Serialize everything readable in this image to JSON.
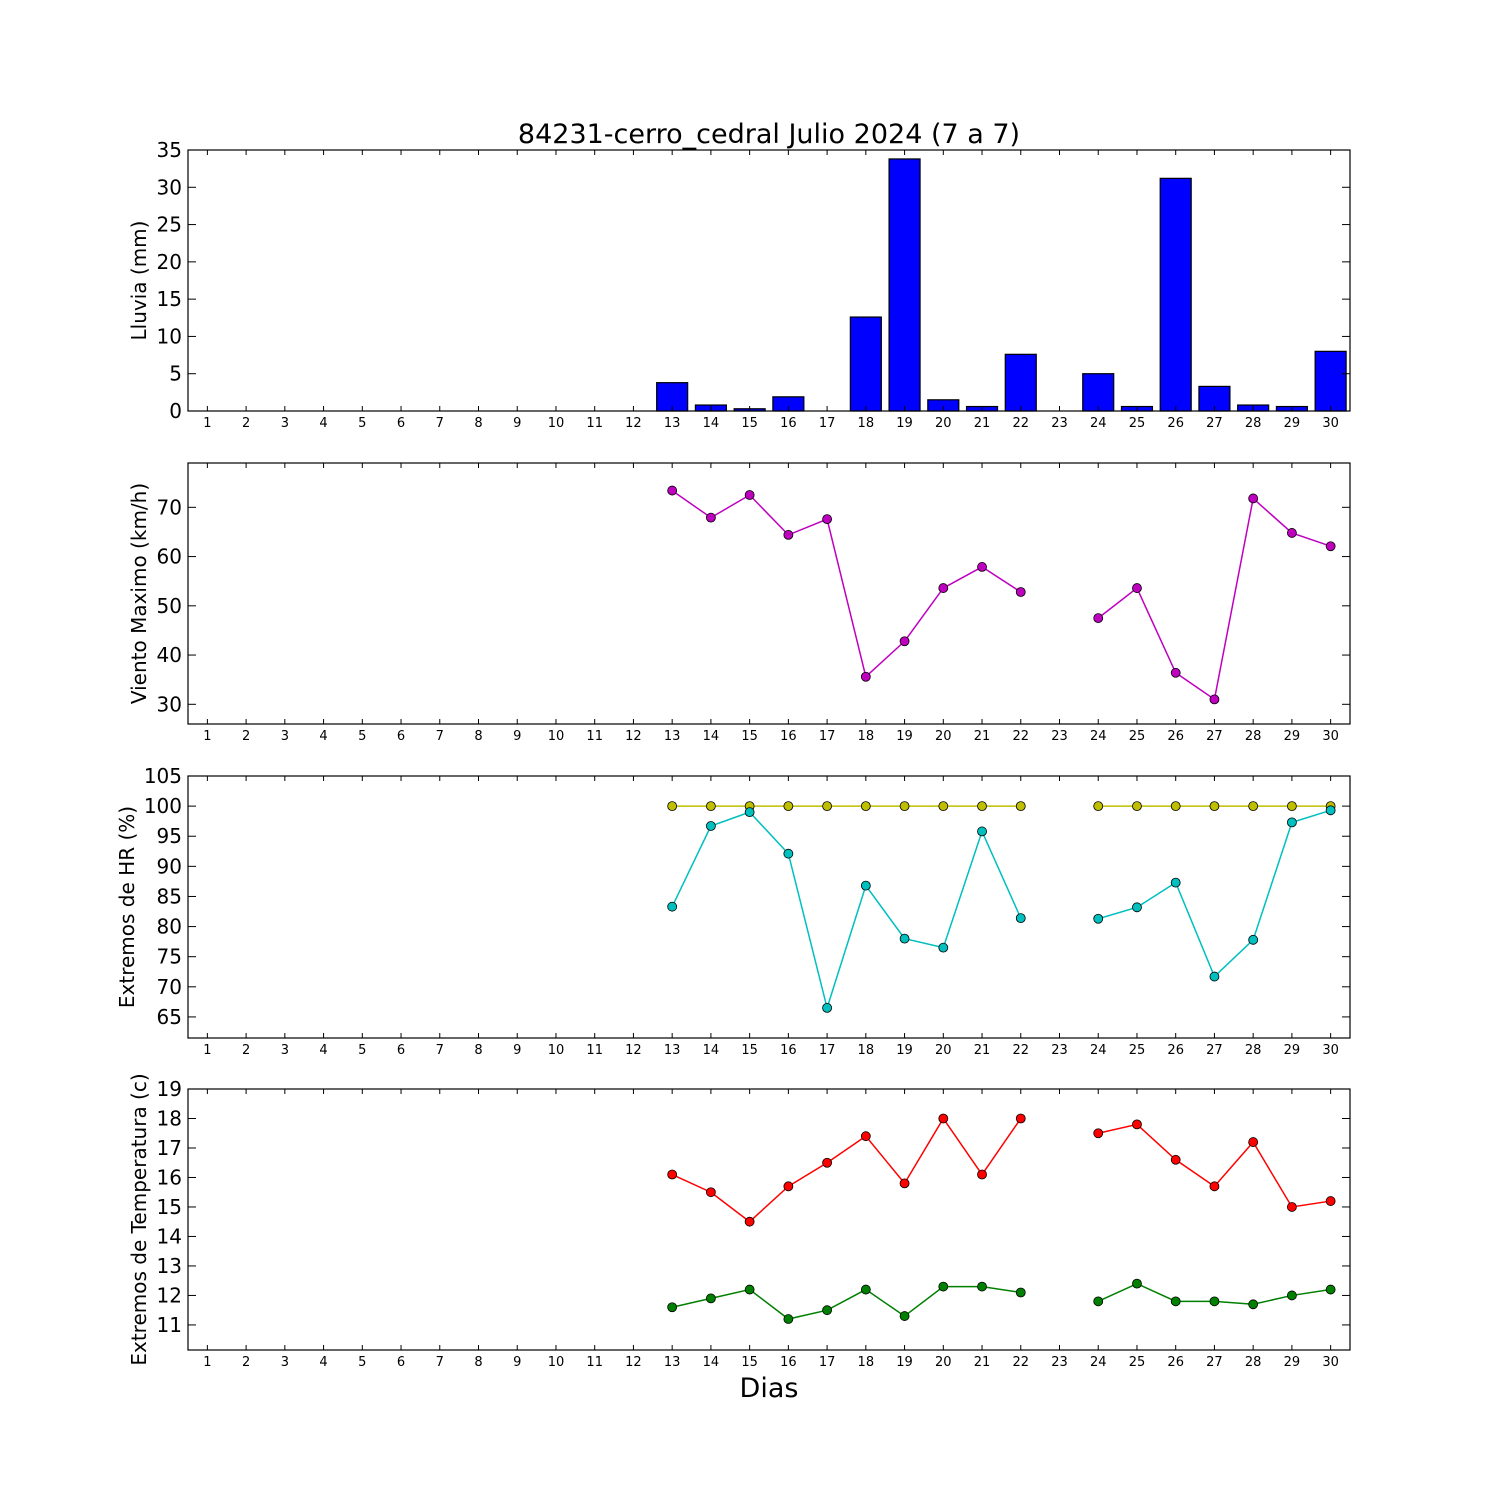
{
  "figure": {
    "title": "84231-cerro_cedral Julio 2024  (7 a 7)",
    "xlabel": "Dias"
  },
  "chart_data": [
    {
      "type": "bar",
      "ylabel": "Lluvia (mm)",
      "ylim": [
        0,
        35
      ],
      "yticks": [
        0,
        5,
        10,
        15,
        20,
        25,
        30,
        35
      ],
      "xlim": [
        0.5,
        30.5
      ],
      "categories": [
        1,
        2,
        3,
        4,
        5,
        6,
        7,
        8,
        9,
        10,
        11,
        12,
        13,
        14,
        15,
        16,
        17,
        18,
        19,
        20,
        21,
        22,
        23,
        24,
        25,
        26,
        27,
        28,
        29,
        30
      ],
      "series": [
        {
          "color": "#0000ff",
          "values": [
            0,
            0,
            0,
            0,
            0,
            0,
            0,
            0,
            0,
            0,
            0,
            0,
            3.8,
            0.8,
            0.3,
            1.9,
            0,
            12.6,
            33.8,
            1.5,
            0.6,
            7.6,
            0,
            5.0,
            0.6,
            31.2,
            3.3,
            0.8,
            0.6,
            8.0
          ]
        }
      ]
    },
    {
      "type": "line",
      "ylabel": "Viento Maximo (km/h)",
      "ylim": [
        26,
        79
      ],
      "yticks": [
        30,
        40,
        50,
        60,
        70
      ],
      "xlim": [
        0.5,
        30.5
      ],
      "categories": [
        1,
        2,
        3,
        4,
        5,
        6,
        7,
        8,
        9,
        10,
        11,
        12,
        13,
        14,
        15,
        16,
        17,
        18,
        19,
        20,
        21,
        22,
        23,
        24,
        25,
        26,
        27,
        28,
        29,
        30
      ],
      "series": [
        {
          "color": "#bf00bf",
          "values": [
            null,
            null,
            null,
            null,
            null,
            null,
            null,
            null,
            null,
            null,
            null,
            null,
            73.4,
            67.9,
            72.5,
            64.4,
            67.6,
            35.6,
            42.8,
            53.6,
            57.9,
            52.8,
            null,
            47.5,
            53.6,
            36.4,
            31.0,
            71.8,
            64.8,
            62.1
          ]
        }
      ]
    },
    {
      "type": "line",
      "ylabel": "Extremos de HR (%)",
      "ylim": [
        61.5,
        105
      ],
      "yticks": [
        65,
        70,
        75,
        80,
        85,
        90,
        95,
        100,
        105
      ],
      "xlim": [
        0.5,
        30.5
      ],
      "categories": [
        1,
        2,
        3,
        4,
        5,
        6,
        7,
        8,
        9,
        10,
        11,
        12,
        13,
        14,
        15,
        16,
        17,
        18,
        19,
        20,
        21,
        22,
        23,
        24,
        25,
        26,
        27,
        28,
        29,
        30
      ],
      "series": [
        {
          "color": "#bfbf00",
          "values": [
            null,
            null,
            null,
            null,
            null,
            null,
            null,
            null,
            null,
            null,
            null,
            null,
            100,
            100,
            100,
            100,
            100,
            100,
            100,
            100,
            100,
            100,
            null,
            100,
            100,
            100,
            100,
            100,
            100,
            100
          ]
        },
        {
          "color": "#00bfbf",
          "values": [
            null,
            null,
            null,
            null,
            null,
            null,
            null,
            null,
            null,
            null,
            null,
            null,
            83.3,
            96.7,
            99.0,
            92.1,
            66.5,
            86.8,
            78.0,
            76.5,
            95.8,
            81.4,
            null,
            81.3,
            83.2,
            87.3,
            71.7,
            77.8,
            97.3,
            99.3
          ]
        }
      ]
    },
    {
      "type": "line",
      "ylabel": "Extremos de Temperatura (c)",
      "ylim": [
        10.15,
        19
      ],
      "yticks": [
        11,
        12,
        13,
        14,
        15,
        16,
        17,
        18,
        19
      ],
      "xlim": [
        0.5,
        30.5
      ],
      "categories": [
        1,
        2,
        3,
        4,
        5,
        6,
        7,
        8,
        9,
        10,
        11,
        12,
        13,
        14,
        15,
        16,
        17,
        18,
        19,
        20,
        21,
        22,
        23,
        24,
        25,
        26,
        27,
        28,
        29,
        30
      ],
      "series": [
        {
          "color": "#ff0000",
          "values": [
            null,
            null,
            null,
            null,
            null,
            null,
            null,
            null,
            null,
            null,
            null,
            null,
            16.1,
            15.5,
            14.5,
            15.7,
            16.5,
            17.4,
            15.8,
            18.0,
            16.1,
            18.0,
            null,
            17.5,
            17.8,
            16.6,
            15.7,
            17.2,
            15.0,
            15.2
          ]
        },
        {
          "color": "#008000",
          "values": [
            null,
            null,
            null,
            null,
            null,
            null,
            null,
            null,
            null,
            null,
            null,
            null,
            11.6,
            11.9,
            12.2,
            11.2,
            11.5,
            12.2,
            11.3,
            12.3,
            12.3,
            12.1,
            null,
            11.8,
            12.4,
            11.8,
            11.8,
            11.7,
            12.0,
            12.2
          ]
        }
      ]
    }
  ]
}
